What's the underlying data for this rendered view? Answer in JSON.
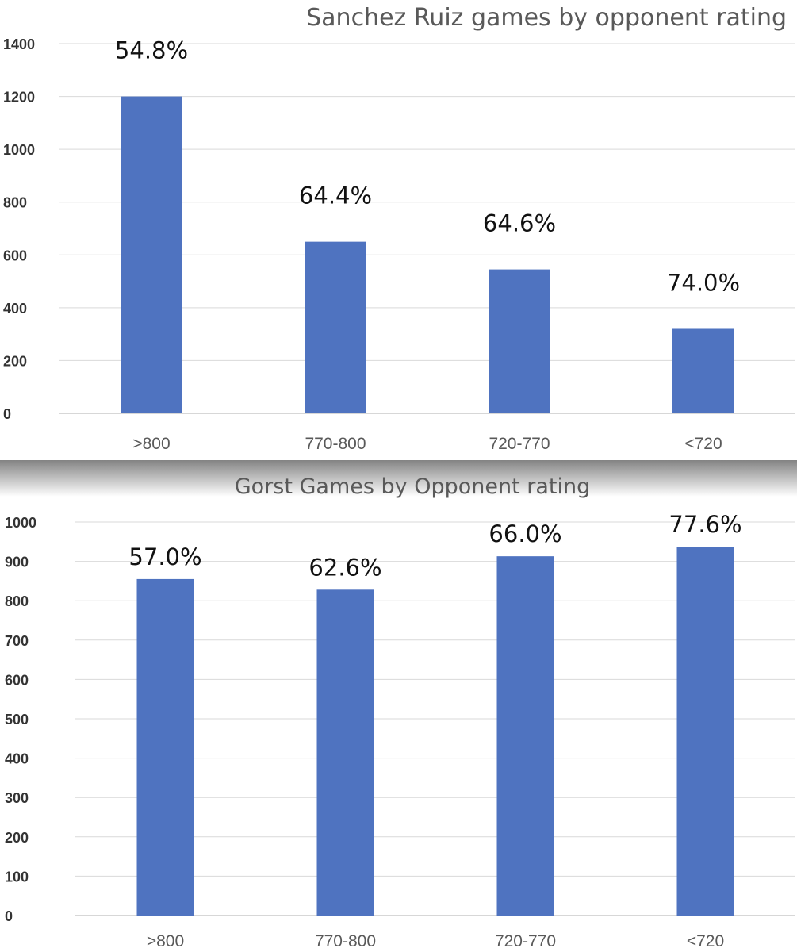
{
  "chart_data": [
    {
      "type": "bar",
      "title": "Sanchez Ruiz games by opponent rating",
      "xlabel": "",
      "ylabel": "",
      "categories": [
        ">800",
        "770-800",
        "720-770",
        "<720"
      ],
      "series": [
        {
          "values": [
            1200,
            650,
            545,
            320
          ]
        }
      ],
      "data_labels": [
        "54.8%",
        "64.4%",
        "64.6%",
        "74.0%"
      ],
      "ylim": [
        0,
        1400
      ],
      "yticks": [
        0,
        200,
        400,
        600,
        800,
        1000,
        1200,
        1400
      ],
      "grid": true,
      "legend": "none",
      "bar_color": "#4f73c0"
    },
    {
      "type": "bar",
      "title": "Gorst Games by Opponent rating",
      "xlabel": "",
      "ylabel": "",
      "categories": [
        ">800",
        "770-800",
        "720-770",
        "<720"
      ],
      "series": [
        {
          "values": [
            855,
            828,
            913,
            937
          ]
        }
      ],
      "data_labels": [
        "57.0%",
        "62.6%",
        "66.0%",
        "77.6%"
      ],
      "ylim": [
        0,
        1000
      ],
      "yticks": [
        0,
        100,
        200,
        300,
        400,
        500,
        600,
        700,
        800,
        900,
        1000
      ],
      "grid": true,
      "legend": "none",
      "bar_color": "#4f73c0"
    }
  ]
}
